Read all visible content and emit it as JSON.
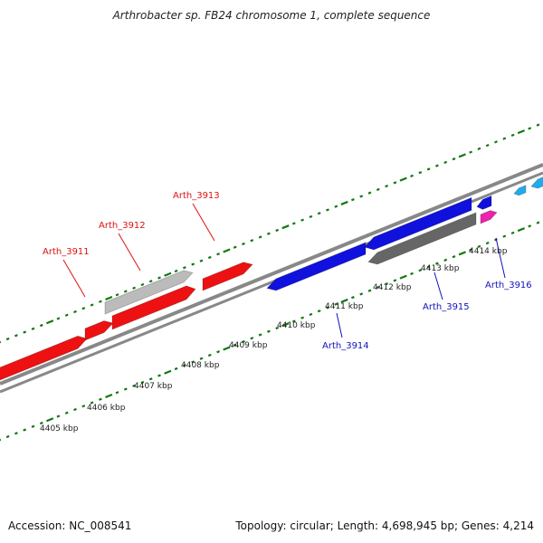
{
  "title": "Arthrobacter sp. FB24 chromosome 1, complete sequence",
  "footer": {
    "accession": "Accession: NC_008541",
    "topology": "Topology: circular; Length: 4,698,945 bp; Genes: 4,214"
  },
  "colors": {
    "forward_gene": "#ee1111",
    "reverse_gene": "#1111dd",
    "pseudo_forward": "#bbbbbb",
    "pseudo_reverse": "#666666",
    "rna_gene": "#ee22aa",
    "other_gene": "#22aaee",
    "backbone": "#888888",
    "ticks": "#117711"
  },
  "scale_ticks": [
    {
      "label": "4405 kbp"
    },
    {
      "label": "4406 kbp"
    },
    {
      "label": "4407 kbp"
    },
    {
      "label": "4408 kbp"
    },
    {
      "label": "4409 kbp"
    },
    {
      "label": "4410 kbp"
    },
    {
      "label": "4411 kbp"
    },
    {
      "label": "4412 kbp"
    },
    {
      "label": "4413 kbp"
    },
    {
      "label": "4414 kbp"
    }
  ],
  "gene_labels": [
    {
      "name": "Arth_3911",
      "strand": "forward"
    },
    {
      "name": "Arth_3912",
      "strand": "forward"
    },
    {
      "name": "Arth_3913",
      "strand": "forward"
    },
    {
      "name": "Arth_3914",
      "strand": "reverse"
    },
    {
      "name": "Arth_3915",
      "strand": "reverse"
    },
    {
      "name": "Arth_3916",
      "strand": "reverse"
    }
  ]
}
